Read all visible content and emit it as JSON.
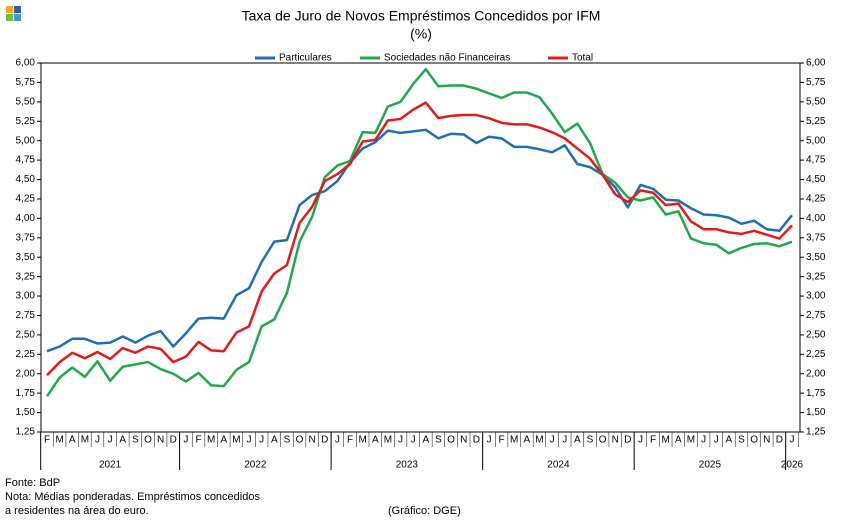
{
  "chart_data": {
    "type": "line",
    "title": "Taxa de Juro de Novos Empréstimos  Concedidos por IFM",
    "subtitle": "(%)",
    "categories": [
      "F",
      "M",
      "A",
      "M",
      "J",
      "J",
      "A",
      "S",
      "O",
      "N",
      "D",
      "J",
      "F",
      "M",
      "A",
      "M",
      "J",
      "J",
      "A",
      "S",
      "O",
      "N",
      "D",
      "J",
      "F",
      "M",
      "A",
      "M",
      "J",
      "J",
      "A",
      "S",
      "O",
      "N",
      "D",
      "J",
      "F",
      "M",
      "A",
      "M",
      "J",
      "J",
      "A",
      "S",
      "O",
      "N",
      "D",
      "J",
      "F",
      "M",
      "A",
      "M",
      "J",
      "J",
      "A",
      "S",
      "O",
      "N",
      "D",
      "J"
    ],
    "year_labels": [
      "2021",
      "2022",
      "2023",
      "2024",
      "2025",
      "2026"
    ],
    "series": [
      {
        "name": "Particulares",
        "color": "#1f6eb5",
        "values": [
          2.29,
          2.35,
          2.45,
          2.45,
          2.39,
          2.4,
          2.48,
          2.4,
          2.49,
          2.55,
          2.35,
          2.52,
          2.71,
          2.72,
          2.71,
          3.01,
          3.1,
          3.44,
          3.7,
          3.72,
          4.17,
          4.3,
          4.35,
          4.48,
          4.72,
          4.9,
          4.98,
          5.13,
          5.1,
          5.12,
          5.14,
          5.03,
          5.09,
          5.08,
          4.97,
          5.05,
          5.03,
          4.92,
          4.92,
          4.89,
          4.85,
          4.94,
          4.7,
          4.66,
          4.56,
          4.4,
          4.14,
          4.43,
          4.38,
          4.24,
          4.23,
          4.13,
          4.05,
          4.04,
          4.01,
          3.93,
          3.97,
          3.86,
          3.84,
          4.04
        ]
      },
      {
        "name": "Sociedades não Financeiras",
        "color": "#22a84a",
        "values": [
          1.71,
          1.95,
          2.08,
          1.96,
          2.16,
          1.91,
          2.09,
          2.12,
          2.15,
          2.06,
          2.0,
          1.9,
          2.01,
          1.85,
          1.84,
          2.05,
          2.15,
          2.61,
          2.7,
          3.04,
          3.7,
          4.02,
          4.53,
          4.68,
          4.74,
          5.11,
          5.1,
          5.44,
          5.5,
          5.73,
          5.92,
          5.7,
          5.71,
          5.71,
          5.67,
          5.61,
          5.55,
          5.62,
          5.62,
          5.56,
          5.35,
          5.11,
          5.22,
          4.97,
          4.57,
          4.46,
          4.27,
          4.23,
          4.27,
          4.05,
          4.09,
          3.74,
          3.68,
          3.66,
          3.55,
          3.62,
          3.67,
          3.68,
          3.64,
          3.7
        ]
      },
      {
        "name": "Total",
        "color": "#e01b1b",
        "values": [
          1.98,
          2.15,
          2.27,
          2.2,
          2.28,
          2.19,
          2.33,
          2.27,
          2.35,
          2.32,
          2.15,
          2.22,
          2.41,
          2.3,
          2.29,
          2.53,
          2.61,
          3.06,
          3.29,
          3.4,
          3.94,
          4.15,
          4.48,
          4.57,
          4.7,
          4.99,
          5.01,
          5.26,
          5.28,
          5.4,
          5.49,
          5.29,
          5.32,
          5.33,
          5.33,
          5.29,
          5.23,
          5.21,
          5.21,
          5.17,
          5.11,
          5.03,
          4.9,
          4.77,
          4.56,
          4.31,
          4.21,
          4.36,
          4.33,
          4.17,
          4.19,
          3.96,
          3.86,
          3.86,
          3.82,
          3.8,
          3.84,
          3.79,
          3.74,
          3.91
        ]
      }
    ],
    "ylim": [
      1.25,
      6.0
    ],
    "yticks": [
      {
        "value": 1.25,
        "label": "1,25"
      },
      {
        "value": 1.5,
        "label": "1,50"
      },
      {
        "value": 1.75,
        "label": "1,75"
      },
      {
        "value": 2,
        "label": "2,00"
      },
      {
        "value": 2.25,
        "label": "2,25"
      },
      {
        "value": 2.5,
        "label": "2,50"
      },
      {
        "value": 2.75,
        "label": "2,75"
      },
      {
        "value": 3,
        "label": "3,00"
      },
      {
        "value": 3.25,
        "label": "3,25"
      },
      {
        "value": 3.5,
        "label": "3,50"
      },
      {
        "value": 3.75,
        "label": "3,75"
      },
      {
        "value": 4,
        "label": "4,00"
      },
      {
        "value": 4.25,
        "label": "4,25"
      },
      {
        "value": 4.5,
        "label": "4,50"
      },
      {
        "value": 4.75,
        "label": "4,75"
      },
      {
        "value": 5,
        "label": "5,00"
      },
      {
        "value": 5.25,
        "label": "5,25"
      },
      {
        "value": 5.5,
        "label": "5,50"
      },
      {
        "value": 5.75,
        "label": "5,75"
      },
      {
        "value": 6,
        "label": "6,00"
      }
    ],
    "grid": false,
    "source": "Fonte: BdP",
    "note_lines": [
      "Nota: Médias ponderadas. Empréstimos concedidos",
      "a residentes na área do euro."
    ],
    "credit": "(Gráfico: DGE)"
  }
}
